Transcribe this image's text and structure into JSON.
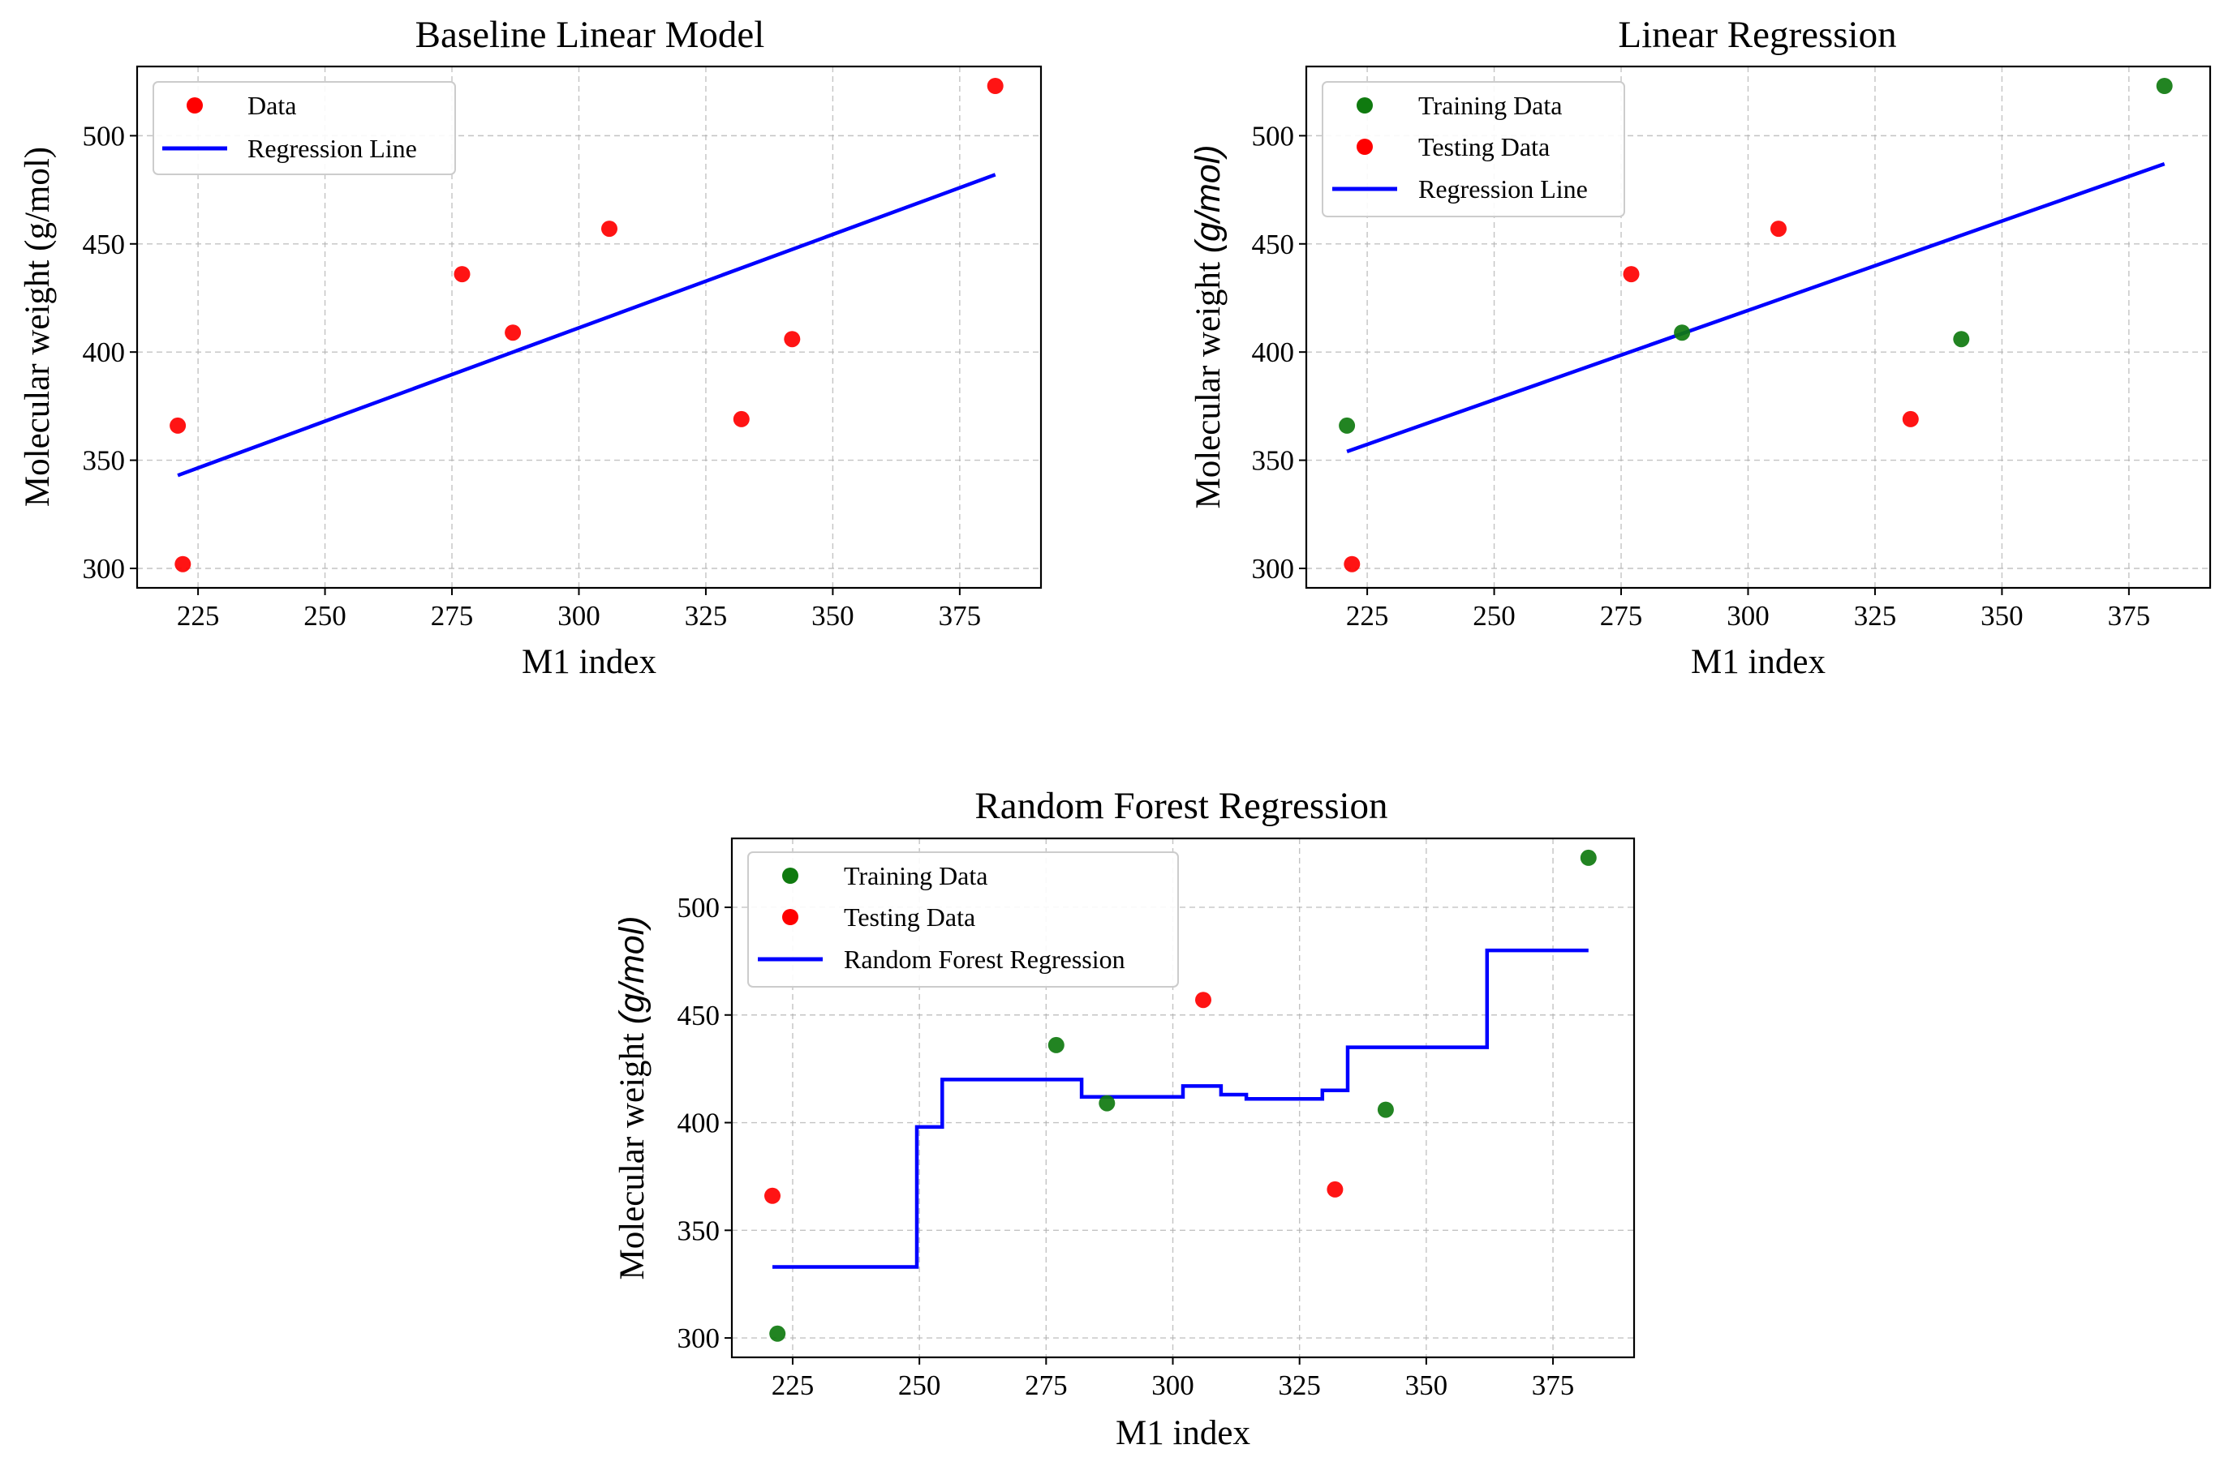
{
  "colors": {
    "training": "#0f7a0f",
    "testing": "#ff0000",
    "regression": "#0000ff"
  },
  "chart_data": [
    {
      "id": "baseline",
      "type": "scatter",
      "title": "Baseline Linear Model",
      "xlabel": "M1 index",
      "ylabel_main": "Molecular weight ",
      "ylabel_tail": "(g/mol)",
      "ylabel_tail_italic": false,
      "xlim": [
        213,
        391
      ],
      "ylim": [
        291,
        532
      ],
      "xticks": [
        225,
        250,
        275,
        300,
        325,
        350,
        375
      ],
      "yticks": [
        300,
        350,
        400,
        450,
        500
      ],
      "grid": true,
      "legend_position": "upper left",
      "series": [
        {
          "name": "Data",
          "kind": "scatter",
          "color": "#ff0000",
          "points": [
            [
              221,
              366
            ],
            [
              222,
              302
            ],
            [
              277,
              436
            ],
            [
              287,
              409
            ],
            [
              306,
              457
            ],
            [
              332,
              369
            ],
            [
              342,
              406
            ],
            [
              382,
              523
            ]
          ]
        },
        {
          "name": "Regression Line",
          "kind": "line",
          "color": "#0000ff",
          "points": [
            [
              221,
              343
            ],
            [
              382,
              482
            ]
          ]
        }
      ]
    },
    {
      "id": "linear",
      "type": "scatter",
      "title": "Linear Regression",
      "xlabel": "M1 index",
      "ylabel_main": "Molecular weight ",
      "ylabel_tail": "(g/mol)",
      "ylabel_tail_italic": true,
      "xlim": [
        213,
        391
      ],
      "ylim": [
        291,
        532
      ],
      "xticks": [
        225,
        250,
        275,
        300,
        325,
        350,
        375
      ],
      "yticks": [
        300,
        350,
        400,
        450,
        500
      ],
      "grid": true,
      "legend_position": "upper left",
      "series": [
        {
          "name": "Training Data",
          "kind": "scatter",
          "color": "#0f7a0f",
          "points": [
            [
              221,
              366
            ],
            [
              287,
              409
            ],
            [
              342,
              406
            ],
            [
              382,
              523
            ]
          ]
        },
        {
          "name": "Testing Data",
          "kind": "scatter",
          "color": "#ff0000",
          "points": [
            [
              222,
              302
            ],
            [
              277,
              436
            ],
            [
              306,
              457
            ],
            [
              332,
              369
            ]
          ]
        },
        {
          "name": "Regression Line",
          "kind": "line",
          "color": "#0000ff",
          "points": [
            [
              221,
              354
            ],
            [
              382,
              487
            ]
          ]
        }
      ]
    },
    {
      "id": "forest",
      "type": "scatter",
      "title": "Random Forest Regression",
      "xlabel": "M1 index",
      "ylabel_main": "Molecular weight ",
      "ylabel_tail": "(g/mol)",
      "ylabel_tail_italic": true,
      "xlim": [
        213,
        391
      ],
      "ylim": [
        291,
        532
      ],
      "xticks": [
        225,
        250,
        275,
        300,
        325,
        350,
        375
      ],
      "yticks": [
        300,
        350,
        400,
        450,
        500
      ],
      "grid": true,
      "legend_position": "upper left",
      "series": [
        {
          "name": "Training Data",
          "kind": "scatter",
          "color": "#0f7a0f",
          "points": [
            [
              222,
              302
            ],
            [
              277,
              436
            ],
            [
              287,
              409
            ],
            [
              342,
              406
            ],
            [
              382,
              523
            ]
          ]
        },
        {
          "name": "Testing Data",
          "kind": "scatter",
          "color": "#ff0000",
          "points": [
            [
              221,
              366
            ],
            [
              306,
              457
            ],
            [
              332,
              369
            ]
          ]
        },
        {
          "name": "Random Forest Regression",
          "kind": "line",
          "color": "#0000ff",
          "points": [
            [
              221,
              333
            ],
            [
              249.5,
              333
            ],
            [
              249.5,
              398
            ],
            [
              254.5,
              398
            ],
            [
              254.5,
              420
            ],
            [
              282,
              420
            ],
            [
              282,
              412
            ],
            [
              302,
              412
            ],
            [
              302,
              417
            ],
            [
              309.5,
              417
            ],
            [
              309.5,
              413
            ],
            [
              314.5,
              413
            ],
            [
              314.5,
              411
            ],
            [
              329.5,
              411
            ],
            [
              329.5,
              415
            ],
            [
              334.5,
              415
            ],
            [
              334.5,
              435
            ],
            [
              362,
              435
            ],
            [
              362,
              480
            ],
            [
              382,
              480
            ]
          ]
        }
      ]
    }
  ]
}
